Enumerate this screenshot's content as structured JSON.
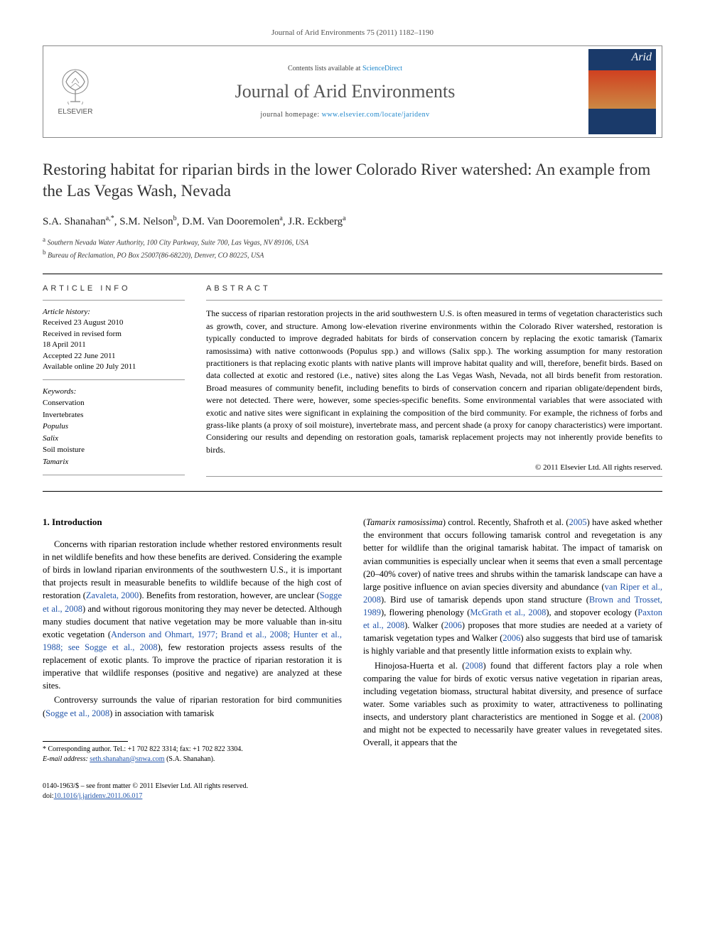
{
  "journal_ref": "Journal of Arid Environments 75 (2011) 1182–1190",
  "header": {
    "contents_prefix": "Contents lists available at ",
    "contents_link": "ScienceDirect",
    "journal_name": "Journal of Arid Environments",
    "homepage_prefix": "journal homepage: ",
    "homepage_url": "www.elsevier.com/locate/jaridenv",
    "publisher": "ELSEVIER",
    "cover_label": "Arid"
  },
  "title": "Restoring habitat for riparian birds in the lower Colorado River watershed: An example from the Las Vegas Wash, Nevada",
  "authors_html": "S.A. Shanahan<sup>a,*</sup>, S.M. Nelson<sup>b</sup>, D.M. Van Dooremolen<sup>a</sup>, J.R. Eckberg<sup>a</sup>",
  "affiliations": [
    {
      "sup": "a",
      "text": "Southern Nevada Water Authority, 100 City Parkway, Suite 700, Las Vegas, NV 89106, USA"
    },
    {
      "sup": "b",
      "text": "Bureau of Reclamation, PO Box 25007(86-68220), Denver, CO 80225, USA"
    }
  ],
  "article_info": {
    "heading": "ARTICLE INFO",
    "history_label": "Article history:",
    "history": "Received 23 August 2010\nReceived in revised form\n18 April 2011\nAccepted 22 June 2011\nAvailable online 20 July 2011",
    "keywords_label": "Keywords:",
    "keywords": [
      "Conservation",
      "Invertebrates",
      "Populus",
      "Salix",
      "Soil moisture",
      "Tamarix"
    ]
  },
  "abstract": {
    "heading": "ABSTRACT",
    "text": "The success of riparian restoration projects in the arid southwestern U.S. is often measured in terms of vegetation characteristics such as growth, cover, and structure. Among low-elevation riverine environments within the Colorado River watershed, restoration is typically conducted to improve degraded habitats for birds of conservation concern by replacing the exotic tamarisk (Tamarix ramosissima) with native cottonwoods (Populus spp.) and willows (Salix spp.). The working assumption for many restoration practitioners is that replacing exotic plants with native plants will improve habitat quality and will, therefore, benefit birds. Based on data collected at exotic and restored (i.e., native) sites along the Las Vegas Wash, Nevada, not all birds benefit from restoration. Broad measures of community benefit, including benefits to birds of conservation concern and riparian obligate/dependent birds, were not detected. There were, however, some species-specific benefits. Some environmental variables that were associated with exotic and native sites were significant in explaining the composition of the bird community. For example, the richness of forbs and grass-like plants (a proxy of soil moisture), invertebrate mass, and percent shade (a proxy for canopy characteristics) were important. Considering our results and depending on restoration goals, tamarisk replacement projects may not inherently provide benefits to birds.",
    "copyright": "© 2011 Elsevier Ltd. All rights reserved."
  },
  "body": {
    "heading": "1. Introduction",
    "p1": "Concerns with riparian restoration include whether restored environments result in net wildlife benefits and how these benefits are derived. Considering the example of birds in lowland riparian environments of the southwestern U.S., it is important that projects result in measurable benefits to wildlife because of the high cost of restoration (Zavaleta, 2000). Benefits from restoration, however, are unclear (Sogge et al., 2008) and without rigorous monitoring they may never be detected. Although many studies document that native vegetation may be more valuable than in-situ exotic vegetation (Anderson and Ohmart, 1977; Brand et al., 2008; Hunter et al., 1988; see Sogge et al., 2008), few restoration projects assess results of the replacement of exotic plants. To improve the practice of riparian restoration it is imperative that wildlife responses (positive and negative) are analyzed at these sites.",
    "p2": "Controversy surrounds the value of riparian restoration for bird communities (Sogge et al., 2008) in association with tamarisk",
    "p3": "(Tamarix ramosissima) control. Recently, Shafroth et al. (2005) have asked whether the environment that occurs following tamarisk control and revegetation is any better for wildlife than the original tamarisk habitat. The impact of tamarisk on avian communities is especially unclear when it seems that even a small percentage (20–40% cover) of native trees and shrubs within the tamarisk landscape can have a large positive influence on avian species diversity and abundance (van Riper et al., 2008). Bird use of tamarisk depends upon stand structure (Brown and Trosset, 1989), flowering phenology (McGrath et al., 2008), and stopover ecology (Paxton et al., 2008). Walker (2006) proposes that more studies are needed at a variety of tamarisk vegetation types and Walker (2006) also suggests that bird use of tamarisk is highly variable and that presently little information exists to explain why.",
    "p4": "Hinojosa-Huerta et al. (2008) found that different factors play a role when comparing the value for birds of exotic versus native vegetation in riparian areas, including vegetation biomass, structural habitat diversity, and presence of surface water. Some variables such as proximity to water, attractiveness to pollinating insects, and understory plant characteristics are mentioned in Sogge et al. (2008) and might not be expected to necessarily have greater values in revegetated sites. Overall, it appears that the"
  },
  "footnote": {
    "corr_label": "* Corresponding author. Tel.: +1 702 822 3314; fax: +1 702 822 3304.",
    "email_label": "E-mail address:",
    "email": "seth.shanahan@snwa.com",
    "email_suffix": "(S.A. Shanahan)."
  },
  "footer": {
    "left1": "0140-1963/$ – see front matter © 2011 Elsevier Ltd. All rights reserved.",
    "left2_prefix": "doi:",
    "doi": "10.1016/j.jaridenv.2011.06.017"
  },
  "colors": {
    "link": "#2255aa",
    "sd_link": "#2288cc"
  }
}
